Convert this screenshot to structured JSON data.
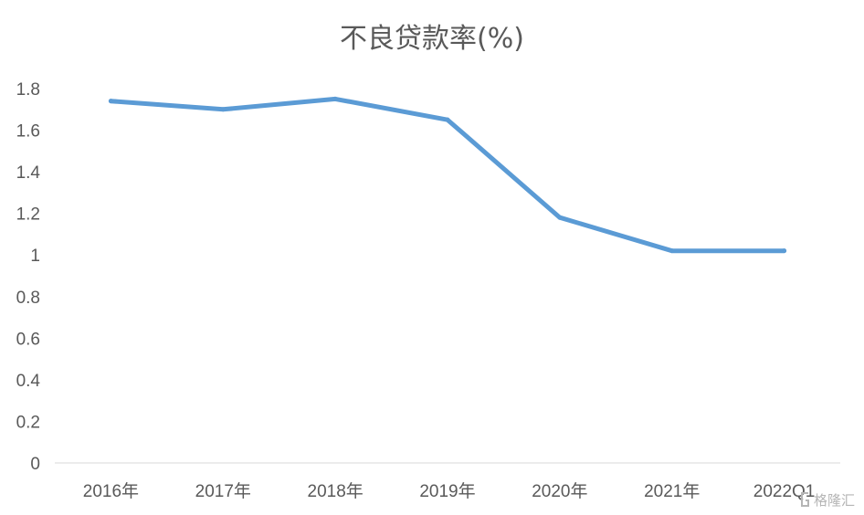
{
  "chart_data": {
    "type": "line",
    "title": "不良贷款率(%)",
    "xlabel": "",
    "ylabel": "",
    "categories": [
      "2016年",
      "2017年",
      "2018年",
      "2019年",
      "2020年",
      "2021年",
      "2022Q1"
    ],
    "series": [
      {
        "values": [
          1.74,
          1.7,
          1.75,
          1.65,
          1.18,
          1.02,
          1.02
        ]
      }
    ],
    "ylim": [
      0,
      1.8
    ],
    "yticks": [
      "0",
      "0.2",
      "0.4",
      "0.6",
      "0.8",
      "1",
      "1.2",
      "1.4",
      "1.6",
      "1.8"
    ],
    "grid": false,
    "legend": "none",
    "line_color": "#5b9bd5"
  },
  "watermark": {
    "text": "格隆汇"
  }
}
